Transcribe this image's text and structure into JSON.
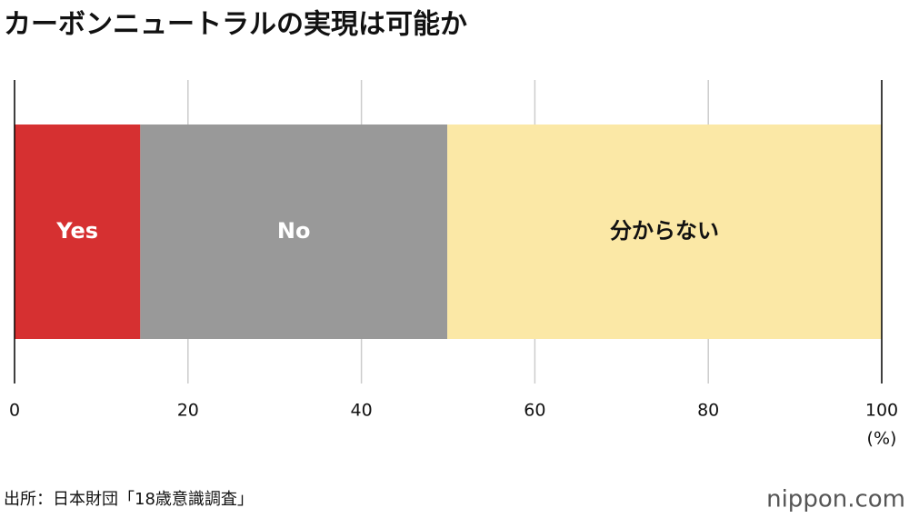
{
  "chart_data": {
    "type": "stacked-bar",
    "orientation": "horizontal",
    "title": "カーボンニュートラルの実現は可能か",
    "series": [
      {
        "name": "Yes",
        "color": "#d63031",
        "values": [
          14.5
        ]
      },
      {
        "name": "No",
        "color": "#999999",
        "values": [
          35.4
        ]
      },
      {
        "name": "分からない",
        "color": "#fbe8a6",
        "values": [
          50.1
        ]
      }
    ],
    "xlim": [
      0,
      100
    ],
    "xticks": [
      0,
      20,
      40,
      60,
      80,
      100
    ],
    "xlabel": "(%)",
    "grid": true,
    "source": "出所：日本財団「18歳意識調査」",
    "logo": "nippon.com"
  }
}
